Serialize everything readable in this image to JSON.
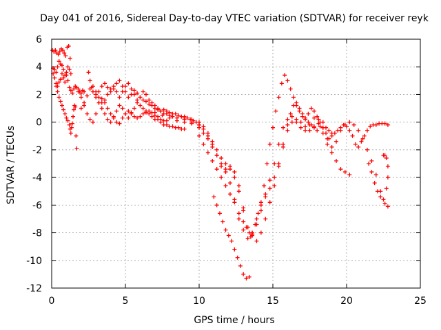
{
  "chart_data": {
    "type": "scatter",
    "title": "Day 041 of 2016, Sidereal Day-to-day VTEC variation (SDTVAR) for receiver reyk",
    "xlabel": "GPS time / hours",
    "ylabel": "SDTVAR / TECUs",
    "xlim": [
      0,
      25
    ],
    "ylim": [
      -12,
      6
    ],
    "xticks": [
      0,
      5,
      10,
      15,
      20,
      25
    ],
    "yticks": [
      -12,
      -10,
      -8,
      -6,
      -4,
      -2,
      0,
      2,
      4,
      6
    ],
    "grid": true,
    "legend": "none",
    "marker": "+",
    "colors": {
      "series": "#ff0000",
      "grid": "#b0b0b0",
      "axis": "#000000",
      "text": "#000000"
    },
    "series": [
      {
        "name": "SDTVAR",
        "x": [
          0.05,
          0.15,
          0.25,
          0.35,
          0.45,
          0.55,
          0.65,
          0.75,
          0.85,
          0.95,
          1.05,
          1.15,
          1.25,
          1.3,
          1.2,
          1.1,
          1.0,
          0.9,
          0.8,
          0.7,
          0.6,
          0.5,
          0.4,
          0.3,
          0.2,
          0.1,
          0.1,
          0.2,
          0.3,
          0.4,
          0.5,
          0.6,
          0.7,
          0.8,
          0.9,
          1.0,
          1.1,
          1.2,
          1.3,
          1.4,
          1.5,
          1.6,
          1.7,
          1.8,
          1.9,
          2.0,
          2.1,
          2.2,
          0.3,
          0.4,
          0.5,
          0.6,
          0.7,
          0.8,
          0.9,
          1.0,
          1.1,
          1.2,
          1.25,
          1.3,
          1.35,
          1.4,
          1.45,
          1.5,
          1.55,
          1.6,
          1.65,
          1.7,
          1.8,
          2.0,
          2.2,
          2.4,
          2.6,
          2.8,
          3.0,
          3.2,
          3.4,
          3.6,
          3.8,
          4.0,
          4.2,
          4.4,
          4.6,
          4.8,
          5.0,
          5.2,
          5.4,
          5.6,
          5.8,
          6.0,
          6.2,
          6.4,
          6.6,
          6.8,
          7.0,
          7.2,
          7.4,
          7.6,
          7.8,
          2.0,
          2.2,
          2.4,
          2.6,
          2.8,
          3.0,
          3.2,
          3.4,
          3.6,
          3.8,
          4.0,
          4.2,
          4.4,
          4.6,
          4.8,
          5.0,
          5.2,
          5.4,
          5.6,
          5.8,
          6.0,
          6.2,
          6.4,
          6.6,
          6.8,
          7.0,
          7.2,
          7.4,
          7.6,
          7.8,
          8.0,
          8.2,
          2.5,
          2.6,
          2.7,
          2.8,
          3.0,
          3.2,
          3.4,
          3.6,
          3.8,
          4.0,
          4.2,
          4.4,
          4.6,
          4.8,
          5.0,
          5.2,
          5.4,
          5.6,
          5.8,
          6.0,
          6.2,
          6.4,
          6.6,
          6.8,
          7.0,
          7.2,
          7.4,
          7.6,
          7.8,
          8.0,
          8.2,
          8.4,
          8.6,
          8.8,
          9.0,
          9.2,
          9.4,
          9.6,
          9.8,
          10.0,
          3.0,
          3.2,
          3.4,
          3.6,
          3.8,
          4.0,
          4.2,
          4.4,
          4.6,
          4.8,
          5.0,
          5.2,
          5.4,
          5.6,
          5.8,
          6.0,
          6.2,
          6.4,
          6.6,
          6.8,
          7.0,
          7.2,
          7.4,
          7.6,
          7.8,
          8.0,
          8.2,
          8.4,
          8.6,
          8.8,
          9.0,
          7.0,
          7.5,
          8.0,
          8.5,
          9.0,
          9.5,
          10.0,
          10.3,
          10.6,
          10.9,
          11.2,
          11.5,
          11.8,
          12.1,
          12.4,
          12.7,
          13.0,
          13.3,
          13.6,
          13.9,
          14.2,
          14.5,
          14.8,
          15.1,
          15.4,
          15.7,
          16.0,
          16.3,
          16.6,
          16.9,
          17.2,
          17.5,
          17.8,
          18.1,
          18.4,
          18.7,
          19.0,
          19.3,
          19.6,
          19.9,
          20.2,
          20.5,
          20.8,
          21.1,
          21.4,
          21.7,
          22.0,
          22.3,
          22.6,
          22.8,
          8.0,
          8.5,
          9.0,
          9.5,
          10.0,
          10.3,
          10.6,
          10.9,
          11.2,
          11.5,
          11.8,
          12.1,
          12.4,
          12.7,
          13.0,
          13.3,
          13.6,
          13.9,
          14.2,
          14.5,
          14.8,
          15.1,
          15.4,
          15.7,
          16.0,
          16.3,
          16.6,
          16.9,
          17.2,
          17.5,
          17.8,
          18.1,
          18.4,
          18.7,
          19.0,
          19.3,
          19.6,
          19.9,
          20.2,
          9.0,
          9.5,
          10.0,
          10.3,
          10.6,
          10.9,
          11.2,
          11.5,
          11.8,
          12.1,
          12.4,
          12.7,
          13.0,
          13.3,
          13.6,
          13.9,
          14.2,
          14.5,
          14.8,
          15.1,
          15.4,
          15.7,
          16.0,
          16.2,
          16.4,
          16.6,
          16.8,
          17.0,
          17.2,
          17.4,
          17.6,
          17.8,
          18.0,
          18.2,
          18.4,
          18.6,
          18.8,
          19.0,
          10.0,
          10.3,
          10.6,
          10.9,
          11.2,
          11.5,
          11.8,
          12.1,
          12.4,
          12.7,
          13.0,
          13.2,
          13.4,
          13.5,
          13.6,
          13.8,
          14.0,
          14.2,
          14.4,
          14.6,
          14.8,
          15.0,
          15.2,
          15.4,
          15.6,
          15.8,
          16.0,
          16.2,
          16.4,
          16.6,
          16.8,
          17.0,
          17.2,
          17.4,
          17.6,
          17.8,
          18.0,
          18.2,
          18.4,
          18.6,
          18.8,
          19.0,
          19.2,
          19.4,
          19.6,
          19.8,
          20.0,
          20.2,
          20.4,
          20.6,
          20.8,
          21.0,
          21.2,
          21.4,
          21.6,
          21.8,
          22.0,
          22.2,
          22.4,
          22.6,
          22.8,
          11.0,
          11.2,
          11.4,
          11.6,
          11.8,
          12.0,
          12.2,
          12.4,
          12.6,
          12.8,
          13.0,
          13.2,
          13.4,
          21.5,
          21.7,
          21.9,
          22.1,
          22.3,
          22.5,
          22.7,
          22.8,
          22.8,
          22.7,
          22.6,
          22.5
        ],
        "y": [
          5.2,
          5.1,
          5.2,
          5.0,
          4.9,
          5.1,
          5.3,
          5.2,
          5.0,
          4.8,
          5.4,
          5.5,
          4.6,
          3.5,
          3.8,
          4.0,
          3.6,
          3.4,
          3.8,
          4.1,
          4.2,
          4.4,
          4.0,
          3.6,
          3.8,
          3.9,
          3.5,
          3.2,
          2.8,
          2.6,
          2.9,
          3.1,
          3.5,
          3.2,
          2.9,
          3.4,
          3.0,
          2.5,
          2.3,
          2.1,
          2.4,
          2.6,
          2.5,
          2.4,
          2.2,
          2.1,
          2.3,
          2.2,
          2.6,
          2.2,
          1.8,
          1.5,
          1.2,
          0.9,
          0.6,
          0.3,
          0.1,
          -0.2,
          -0.5,
          -0.8,
          -0.4,
          -0.1,
          0.4,
          0.9,
          1.2,
          1.1,
          -1.0,
          -1.9,
          2.2,
          1.8,
          1.2,
          0.6,
          0.2,
          0.0,
          0.6,
          1.4,
          1.7,
          1.4,
          1.0,
          0.6,
          0.3,
          0.0,
          -0.1,
          0.3,
          0.6,
          0.8,
          0.7,
          0.4,
          0.3,
          0.4,
          0.6,
          0.7,
          0.8,
          0.7,
          0.5,
          0.4,
          0.2,
          0.1,
          0.1,
          1.0,
          1.4,
          1.9,
          2.4,
          2.6,
          2.2,
          1.8,
          1.4,
          1.6,
          2.0,
          2.4,
          2.6,
          2.2,
          1.8,
          2.2,
          2.6,
          2.8,
          2.4,
          2.0,
          1.6,
          1.8,
          2.2,
          2.0,
          1.6,
          1.4,
          1.2,
          1.0,
          0.8,
          0.6,
          0.6,
          0.5,
          0.4,
          3.6,
          3.0,
          2.5,
          2.2,
          2.0,
          2.2,
          2.6,
          2.8,
          2.5,
          2.2,
          2.4,
          2.8,
          3.0,
          2.6,
          2.2,
          1.8,
          2.0,
          2.3,
          2.1,
          1.8,
          1.6,
          1.5,
          1.3,
          1.2,
          1.0,
          0.9,
          0.8,
          0.9,
          0.8,
          0.7,
          0.6,
          0.6,
          0.5,
          0.4,
          0.4,
          0.3,
          0.2,
          0.1,
          0.0,
          -0.2,
          1.8,
          1.4,
          1.0,
          0.6,
          0.2,
          0.0,
          0.4,
          0.8,
          1.2,
          1.0,
          0.6,
          0.3,
          0.6,
          1.0,
          1.4,
          1.2,
          1.0,
          0.8,
          0.6,
          0.4,
          0.2,
          0.2,
          0.0,
          -0.2,
          -0.2,
          -0.3,
          -0.3,
          -0.4,
          -0.4,
          -0.5,
          -0.5,
          0.7,
          0.5,
          0.3,
          0.1,
          0.0,
          -0.1,
          -0.4,
          -0.8,
          -1.2,
          -1.8,
          -2.4,
          -3.0,
          -3.6,
          -4.4,
          -5.6,
          -7.0,
          -7.8,
          -8.4,
          -8.0,
          -7.0,
          -6.0,
          -5.2,
          -4.2,
          -3.0,
          -1.6,
          -0.4,
          0.2,
          0.4,
          0.0,
          -0.4,
          -0.6,
          -0.2,
          0.3,
          0.2,
          -0.4,
          -1.2,
          -1.8,
          -1.4,
          -0.6,
          -0.2,
          0.0,
          -0.2,
          -0.6,
          -1.2,
          -2.0,
          -2.8,
          -3.8,
          -5.0,
          -5.9,
          -6.1,
          0.5,
          0.3,
          0.2,
          0.0,
          -0.2,
          -0.5,
          -1.0,
          -1.6,
          -2.4,
          -3.2,
          -3.4,
          -3.2,
          -3.6,
          -4.6,
          -6.2,
          -7.6,
          -8.0,
          -7.4,
          -6.4,
          -5.4,
          -4.8,
          -4.0,
          -3.0,
          -1.8,
          -0.6,
          0.0,
          0.2,
          0.0,
          -0.3,
          -0.6,
          -0.3,
          -0.1,
          -0.8,
          -1.6,
          -2.2,
          -2.8,
          -3.4,
          -3.6,
          -3.8,
          0.3,
          0.2,
          0.0,
          -0.3,
          -0.8,
          -1.4,
          -2.0,
          -2.6,
          -3.0,
          -3.4,
          -4.0,
          -5.0,
          -6.4,
          -7.6,
          -8.2,
          -8.6,
          -8.0,
          -7.0,
          -5.8,
          -4.6,
          -3.2,
          -1.6,
          -0.2,
          0.6,
          1.2,
          1.4,
          1.0,
          0.6,
          0.3,
          0.0,
          -0.2,
          -0.4,
          -0.6,
          -0.3,
          0.0,
          -0.4,
          -0.6,
          -0.8,
          -1.0,
          -1.6,
          -2.2,
          -2.8,
          -3.4,
          -4.0,
          -4.6,
          -5.2,
          -5.8,
          -6.6,
          -7.2,
          -7.6,
          -8.0,
          -8.3,
          -8.1,
          -7.4,
          -6.6,
          -5.8,
          -4.6,
          -3.0,
          -1.6,
          -0.4,
          0.8,
          1.8,
          2.8,
          3.4,
          3.0,
          2.4,
          1.8,
          1.2,
          0.8,
          0.4,
          0.2,
          0.6,
          1.0,
          0.8,
          0.4,
          0.0,
          -0.4,
          -0.8,
          -1.2,
          -1.0,
          -0.8,
          -0.6,
          -0.4,
          -0.2,
          -0.3,
          -0.6,
          -1.0,
          -1.6,
          -1.8,
          -1.4,
          -1.0,
          -0.6,
          -0.3,
          -0.2,
          -0.2,
          -0.1,
          -0.1,
          -0.1,
          -0.2,
          -5.4,
          -6.0,
          -6.6,
          -7.2,
          -7.8,
          -8.2,
          -8.6,
          -9.2,
          -9.8,
          -10.4,
          -11.0,
          -11.3,
          -11.2,
          -3.0,
          -3.6,
          -4.4,
          -5.0,
          -5.4,
          -5.6,
          -4.8,
          -4.0,
          -3.2,
          -2.6,
          -2.4,
          -2.4
        ]
      }
    ]
  }
}
